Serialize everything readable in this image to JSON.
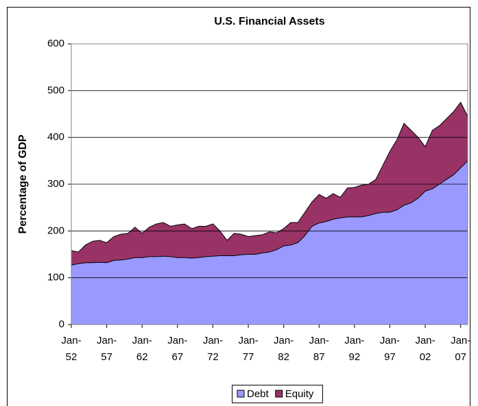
{
  "chart_data": {
    "type": "stacked_area",
    "title": "U.S. Financial Assets",
    "y_label": "Percentage of GDP",
    "categories": [
      "Jan-52",
      null,
      null,
      null,
      null,
      "Jan-57",
      null,
      null,
      null,
      null,
      "Jan-62",
      null,
      null,
      null,
      null,
      "Jan-67",
      null,
      null,
      null,
      null,
      "Jan-72",
      null,
      null,
      null,
      null,
      "Jan-77",
      null,
      null,
      null,
      null,
      "Jan-82",
      null,
      null,
      null,
      null,
      "Jan-87",
      null,
      null,
      null,
      null,
      "Jan-92",
      null,
      null,
      null,
      null,
      "Jan-97",
      null,
      null,
      null,
      null,
      "Jan-02",
      null,
      null,
      null,
      null,
      "Jan-07",
      null
    ],
    "series": [
      {
        "name": "Debt",
        "color": "#9999ff",
        "values": [
          127,
          130,
          132,
          132,
          133,
          132,
          137,
          138,
          140,
          143,
          143,
          145,
          145,
          146,
          145,
          143,
          143,
          142,
          143,
          145,
          146,
          147,
          147,
          147,
          149,
          150,
          150,
          153,
          155,
          160,
          168,
          170,
          175,
          190,
          210,
          217,
          220,
          225,
          228,
          230,
          230,
          230,
          233,
          237,
          240,
          240,
          245,
          255,
          260,
          270,
          285,
          290,
          300,
          310,
          320,
          335,
          350
        ]
      },
      {
        "name": "Equity",
        "color": "#993366",
        "values": [
          31,
          25,
          38,
          46,
          47,
          43,
          51,
          55,
          55,
          65,
          52,
          63,
          70,
          72,
          65,
          70,
          72,
          63,
          67,
          65,
          69,
          53,
          33,
          48,
          44,
          38,
          40,
          39,
          43,
          36,
          37,
          48,
          43,
          50,
          52,
          61,
          50,
          55,
          44,
          62,
          63,
          68,
          67,
          73,
          100,
          130,
          150,
          175,
          155,
          130,
          95,
          125,
          125,
          130,
          135,
          140,
          95
        ]
      }
    ],
    "ylim": [
      0,
      600
    ],
    "yticks": [
      0,
      100,
      200,
      300,
      400,
      500,
      600
    ],
    "grid": true,
    "legend": "bottom"
  }
}
